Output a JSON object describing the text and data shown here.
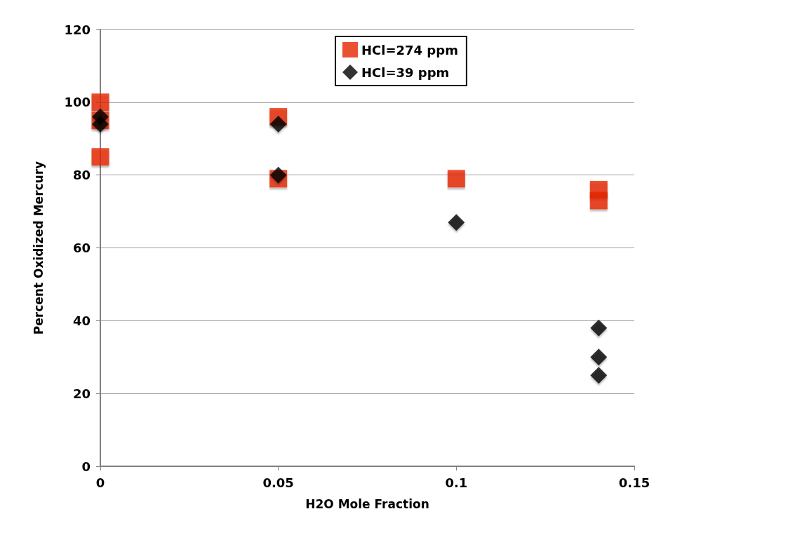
{
  "chart_data": {
    "type": "scatter",
    "xlabel": "H2O Mole Fraction",
    "ylabel": "Percent Oxidized Mercury",
    "xlim": [
      0,
      0.15
    ],
    "xticks": [
      0,
      0.05,
      0.1,
      0.15
    ],
    "ylim": [
      0,
      120
    ],
    "yticks": [
      0,
      20,
      40,
      60,
      80,
      100,
      120
    ],
    "grid": "y",
    "legend": "top",
    "series": [
      {
        "name": "HCl=274 ppm",
        "color": "#e52600",
        "marker": "square",
        "x": [
          0,
          0,
          0,
          0.05,
          0.05,
          0.1,
          0.14,
          0.14
        ],
        "values": [
          100,
          95,
          85,
          96,
          79,
          79,
          76,
          73
        ]
      },
      {
        "name": "HCl=39 ppm",
        "color": "#000000",
        "marker": "diamond",
        "x": [
          0,
          0,
          0.05,
          0.05,
          0.1,
          0.14,
          0.14,
          0.14
        ],
        "values": [
          96,
          94,
          94,
          80,
          67,
          38,
          30,
          25
        ]
      }
    ]
  }
}
